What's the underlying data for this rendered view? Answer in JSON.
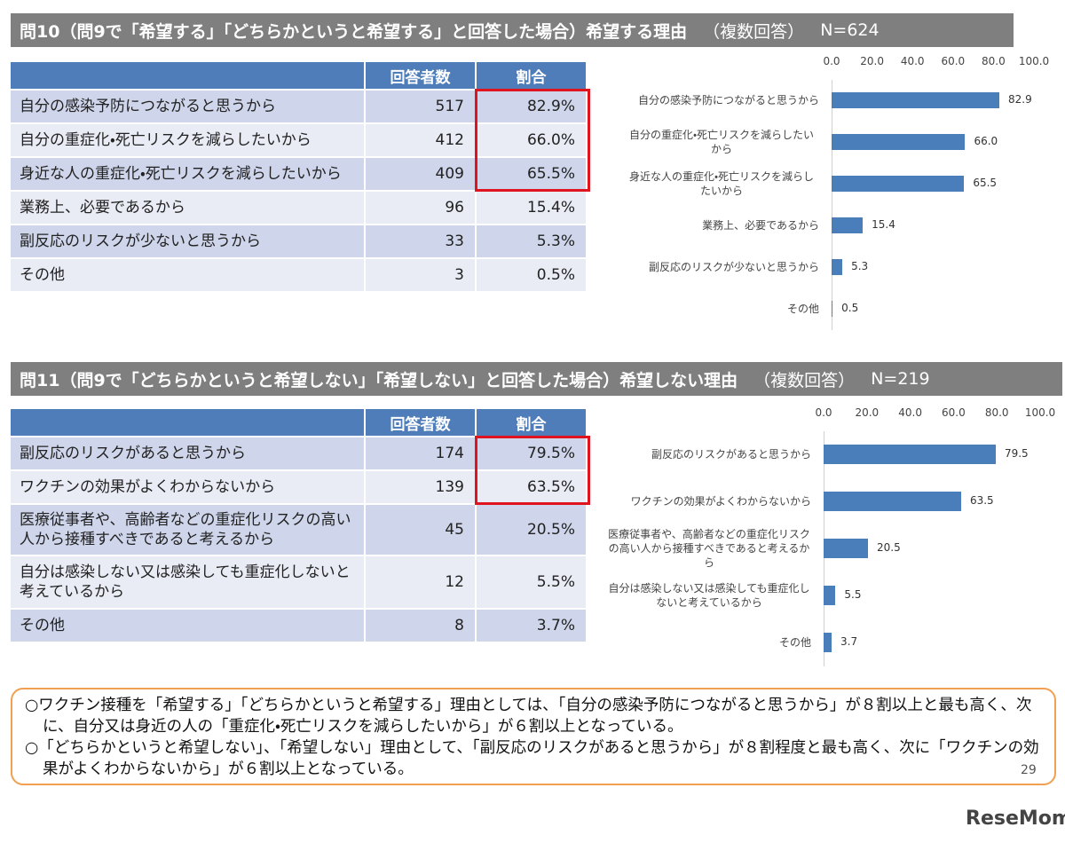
{
  "sections": [
    {
      "title": "問10（問9で「希望する」「どちらかというと希望する」と回答した場合）希望する理由",
      "note": "（複数回答）",
      "n": "N=624",
      "table": {
        "headers": [
          "回答者数",
          "割合"
        ],
        "rows": [
          [
            "自分の感染予防につながると思うから",
            "517",
            "82.9%"
          ],
          [
            "自分の重症化・死亡リスクを減らしたいから",
            "412",
            "66.0%"
          ],
          [
            "身近な人の重症化・死亡リスクを減らしたいから",
            "409",
            "65.5%"
          ],
          [
            "業務上、必要であるから",
            "96",
            "15.4%"
          ],
          [
            "副反応のリスクが少ないと思うから",
            "33",
            "5.3%"
          ],
          [
            "その他",
            "3",
            "0.5%"
          ]
        ]
      },
      "chart": {
        "type": "bar",
        "categories": [
          "自分の感染予防につながると思うから",
          "自分の重症化・死亡リスクを減らしたいから",
          "身近な人の重症化・死亡リスクを減らしたいから",
          "業務上、必要であるから",
          "副反応のリスクが少ないと思うから",
          "その他"
        ],
        "values": [
          82.9,
          66.0,
          65.5,
          15.4,
          5.3,
          0.5
        ],
        "value_labels": [
          "82.9",
          "66.0",
          "65.5",
          "15.4",
          "5.3",
          "0.5"
        ],
        "color": "#4a7ebb",
        "xlim": [
          0,
          100
        ],
        "xticks": [
          {
            "value": 0,
            "label": "0.0"
          },
          {
            "value": 20,
            "label": "20.0"
          },
          {
            "value": 40,
            "label": "40.0"
          },
          {
            "value": 60,
            "label": "60.0"
          },
          {
            "value": 80,
            "label": "80.0"
          },
          {
            "value": 100,
            "label": "100.0"
          }
        ]
      }
    },
    {
      "title": "問11（問9で「どちらかというと希望しない」「希望しない」と回答した場合）希望しない理由",
      "note": "（複数回答）",
      "n": "N=219",
      "table": {
        "headers": [
          "回答者数",
          "割合"
        ],
        "rows": [
          [
            "副反応のリスクがあると思うから",
            "174",
            "79.5%"
          ],
          [
            "ワクチンの効果がよくわからないから",
            "139",
            "63.5%"
          ],
          [
            "医療従事者や、高齢者などの重症化リスクの高い人から接種すべきであると考えるから",
            "45",
            "20.5%"
          ],
          [
            "自分は感染しない又は感染しても重症化しないと考えているから",
            "12",
            "5.5%"
          ],
          [
            "その他",
            "8",
            "3.7%"
          ]
        ]
      },
      "chart": {
        "type": "bar",
        "categories": [
          "副反応のリスクがあると思うから",
          "ワクチンの効果がよくわからないから",
          "医療従事者や、高齢者などの重症化リスクの高い人から接種すべきであると考えるから",
          "自分は感染しない又は感染しても重症化しないと考えているから",
          "その他"
        ],
        "values": [
          79.5,
          63.5,
          20.5,
          5.5,
          3.7
        ],
        "value_labels": [
          "79.5",
          "63.5",
          "20.5",
          "5.5",
          "3.7"
        ],
        "color": "#4a7ebb",
        "xlim": [
          0,
          100
        ],
        "xticks": [
          {
            "value": 0,
            "label": "0.0"
          },
          {
            "value": 20,
            "label": "20.0"
          },
          {
            "value": 40,
            "label": "40.0"
          },
          {
            "value": 60,
            "label": "60.0"
          },
          {
            "value": 80,
            "label": "80.0"
          },
          {
            "value": 100,
            "label": "100.0"
          }
        ]
      }
    }
  ],
  "summary": [
    "○ワクチン接種を「希望する」「どちらかというと希望する」理由としては、「自分の感染予防につながると思うから」が８割以上と最も高く、次に、自分又は身近の人の「重症化・死亡リスクを減らしたいから」が６割以上となっている。",
    "○「どちらかというと希望しない」、「希望しない」理由として、「副反応のリスクがあると思うから」が８割程度と最も高く、次に「ワクチンの効果がよくわからないから」が６割以上となっている。"
  ],
  "page_number": "29",
  "logo": "ReseMom"
}
